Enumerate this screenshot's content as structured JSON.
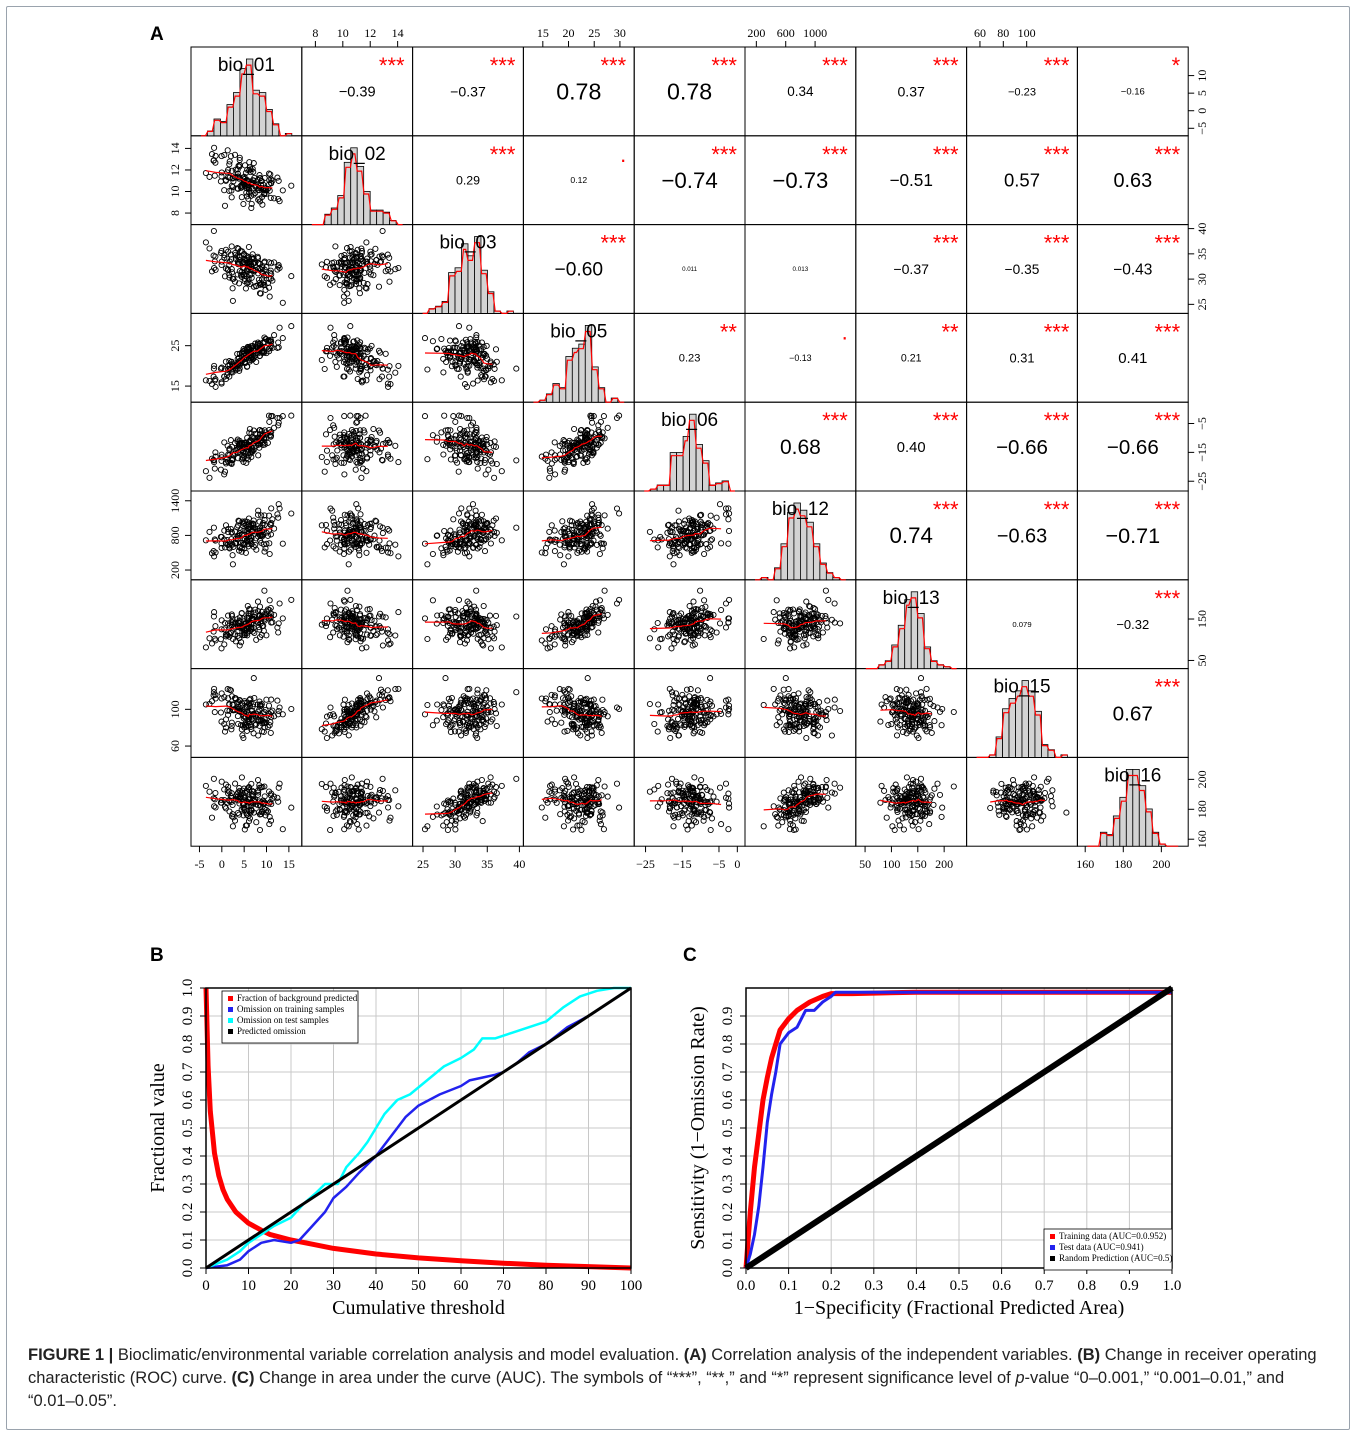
{
  "panel_letters": {
    "a": "A",
    "b": "B",
    "c": "C"
  },
  "caption": {
    "label": "FIGURE 1 |",
    "intro": " Bioclimatic/environmental variable correlation analysis and model evaluation. ",
    "a_tag": "(A)",
    "a_text": " Correlation analysis of the independent variables. ",
    "b_tag": "(B)",
    "b_text": " Change in receiver operating characteristic (ROC) curve. ",
    "c_tag": "(C)",
    "c_text": " Change in area under the curve (AUC). The symbols of “***”, “**,” and “*” represent significance level of ",
    "p_italic": "p",
    "end_text": "-value “0–0.001,” “0.001–0.01,” and “0.01–0.05”."
  },
  "chart_data": [
    {
      "type": "scatter",
      "id": "A",
      "variables": [
        "bio_01",
        "bio_02",
        "bio_03",
        "bio_05",
        "bio_06",
        "bio_12",
        "bio_13",
        "bio_15",
        "bio_16"
      ],
      "ranges": [
        [
          -6,
          17
        ],
        [
          7.3,
          14.8
        ],
        [
          24,
          40
        ],
        [
          12,
          32
        ],
        [
          -27,
          1
        ],
        [
          100,
          1500
        ],
        [
          40,
          235
        ],
        [
          52,
          140
        ],
        [
          158,
          212
        ]
      ],
      "axis_ticks": [
        {
          "values": [
            -5,
            0,
            5,
            10,
            15
          ],
          "labels": [
            "-5",
            "0",
            "5",
            "10",
            "15"
          ],
          "edge": "bottom"
        },
        {
          "values": [
            8,
            10,
            12,
            14
          ],
          "labels": [
            "8",
            "10",
            "12",
            "14"
          ],
          "edge": "top"
        },
        {
          "values": [
            25,
            30,
            35,
            40
          ],
          "labels": [
            "25",
            "30",
            "35",
            "40"
          ],
          "edge": "bottom"
        },
        {
          "values": [
            15,
            20,
            25,
            30
          ],
          "labels": [
            "15",
            "20",
            "25",
            "30"
          ],
          "edge": "top"
        },
        {
          "values": [
            -25,
            -15,
            -5,
            0
          ],
          "labels": [
            "−25",
            "−15",
            "−5",
            "0"
          ],
          "edge": "bottom"
        },
        {
          "values": [
            200,
            600,
            1000
          ],
          "labels": [
            "200",
            "600",
            "1000"
          ],
          "edge": "top"
        },
        {
          "values": [
            50,
            100,
            150,
            200
          ],
          "labels": [
            "50",
            "100",
            "150",
            "200"
          ],
          "edge": "bottom"
        },
        {
          "values": [
            60,
            80,
            100
          ],
          "labels": [
            "60",
            "80",
            "100"
          ],
          "edge": "top"
        },
        {
          "values": [
            160,
            180,
            200
          ],
          "labels": [
            "160",
            "180",
            "200"
          ],
          "edge": "bottom"
        }
      ],
      "y_axis_ticks": [
        {
          "values": [
            -5,
            0,
            5,
            10
          ],
          "labels": [
            "−5",
            "0",
            "5",
            "10"
          ],
          "edge": "right"
        },
        {
          "values": [
            8,
            10,
            12,
            14
          ],
          "labels": [
            "8",
            "10",
            "12",
            "14"
          ],
          "edge": "left"
        },
        {
          "values": [
            25,
            30,
            35,
            40
          ],
          "labels": [
            "25",
            "30",
            "35",
            "40"
          ],
          "edge": "right"
        },
        {
          "values": [
            15,
            25
          ],
          "labels": [
            "15",
            "25"
          ],
          "edge": "left"
        },
        {
          "values": [
            -25,
            -15,
            -5
          ],
          "labels": [
            "−25",
            "−15",
            "−5"
          ],
          "edge": "right"
        },
        {
          "values": [
            200,
            800,
            1400
          ],
          "labels": [
            "200",
            "800",
            "1400"
          ],
          "edge": "left"
        },
        {
          "values": [
            50,
            150
          ],
          "labels": [
            "50",
            "150"
          ],
          "edge": "right"
        },
        {
          "values": [
            60,
            100
          ],
          "labels": [
            "60",
            "100"
          ],
          "edge": "left"
        },
        {
          "values": [
            160,
            180,
            200
          ],
          "labels": [
            "160",
            "180",
            "200"
          ],
          "edge": "right"
        }
      ],
      "correlations": [
        {
          "row": 0,
          "col": 1,
          "r": "−0.39",
          "stars": "***"
        },
        {
          "row": 0,
          "col": 2,
          "r": "−0.37",
          "stars": "***"
        },
        {
          "row": 0,
          "col": 3,
          "r": "0.78",
          "stars": "***"
        },
        {
          "row": 0,
          "col": 4,
          "r": "0.78",
          "stars": "***"
        },
        {
          "row": 0,
          "col": 5,
          "r": "0.34",
          "stars": "***"
        },
        {
          "row": 0,
          "col": 6,
          "r": "0.37",
          "stars": "***"
        },
        {
          "row": 0,
          "col": 7,
          "r": "−0.23",
          "stars": "***"
        },
        {
          "row": 0,
          "col": 8,
          "r": "−0.16",
          "stars": "*"
        },
        {
          "row": 1,
          "col": 2,
          "r": "0.29",
          "stars": "***"
        },
        {
          "row": 1,
          "col": 3,
          "r": "0.12",
          "stars": "."
        },
        {
          "row": 1,
          "col": 4,
          "r": "−0.74",
          "stars": "***"
        },
        {
          "row": 1,
          "col": 5,
          "r": "−0.73",
          "stars": "***"
        },
        {
          "row": 1,
          "col": 6,
          "r": "−0.51",
          "stars": "***"
        },
        {
          "row": 1,
          "col": 7,
          "r": "0.57",
          "stars": "***"
        },
        {
          "row": 1,
          "col": 8,
          "r": "0.63",
          "stars": "***"
        },
        {
          "row": 2,
          "col": 3,
          "r": "−0.60",
          "stars": "***"
        },
        {
          "row": 2,
          "col": 4,
          "r": "0.011",
          "stars": ""
        },
        {
          "row": 2,
          "col": 5,
          "r": "0.013",
          "stars": ""
        },
        {
          "row": 2,
          "col": 6,
          "r": "−0.37",
          "stars": "***"
        },
        {
          "row": 2,
          "col": 7,
          "r": "−0.35",
          "stars": "***"
        },
        {
          "row": 2,
          "col": 8,
          "r": "−0.43",
          "stars": "***"
        },
        {
          "row": 3,
          "col": 4,
          "r": "0.23",
          "stars": "**"
        },
        {
          "row": 3,
          "col": 5,
          "r": "−0.13",
          "stars": "."
        },
        {
          "row": 3,
          "col": 6,
          "r": "0.21",
          "stars": "**"
        },
        {
          "row": 3,
          "col": 7,
          "r": "0.31",
          "stars": "***"
        },
        {
          "row": 3,
          "col": 8,
          "r": "0.41",
          "stars": "***"
        },
        {
          "row": 4,
          "col": 5,
          "r": "0.68",
          "stars": "***"
        },
        {
          "row": 4,
          "col": 6,
          "r": "0.40",
          "stars": "***"
        },
        {
          "row": 4,
          "col": 7,
          "r": "−0.66",
          "stars": "***"
        },
        {
          "row": 4,
          "col": 8,
          "r": "−0.66",
          "stars": "***"
        },
        {
          "row": 5,
          "col": 6,
          "r": "0.74",
          "stars": "***"
        },
        {
          "row": 5,
          "col": 7,
          "r": "−0.63",
          "stars": "***"
        },
        {
          "row": 5,
          "col": 8,
          "r": "−0.71",
          "stars": "***"
        },
        {
          "row": 6,
          "col": 7,
          "r": "0.079",
          "stars": ""
        },
        {
          "row": 6,
          "col": 8,
          "r": "−0.32",
          "stars": "***"
        },
        {
          "row": 7,
          "col": 8,
          "r": "0.67",
          "stars": "***"
        }
      ],
      "colors": {
        "stars": "#ff0000",
        "smooth": "#ff0000",
        "points": "#000000",
        "bars": "#d3d3d3"
      }
    },
    {
      "type": "line",
      "id": "B",
      "xlabel": "Cumulative threshold",
      "ylabel": "Fractional value",
      "xlim": [
        0,
        100
      ],
      "ylim": [
        0,
        1
      ],
      "x_ticks": [
        0,
        10,
        20,
        30,
        40,
        50,
        60,
        70,
        80,
        90,
        100
      ],
      "y_ticks": [
        "0.0",
        "0.1",
        "0.2",
        "0.3",
        "0.4",
        "0.5",
        "0.6",
        "0.7",
        "0.8",
        "0.9",
        "1.0"
      ],
      "grid": true,
      "legend": "top-left",
      "series": [
        {
          "name": "Fraction of background predicted",
          "color": "#ff0000",
          "x": [
            0,
            0.5,
            1,
            2,
            3,
            4,
            5,
            7,
            10,
            13,
            15,
            20,
            25,
            30,
            40,
            50,
            60,
            70,
            80,
            90,
            100
          ],
          "y": [
            1.0,
            0.72,
            0.56,
            0.41,
            0.33,
            0.28,
            0.245,
            0.2,
            0.16,
            0.135,
            0.12,
            0.1,
            0.085,
            0.07,
            0.05,
            0.036,
            0.026,
            0.017,
            0.01,
            0.005,
            0.0
          ]
        },
        {
          "name": "Omission on training samples",
          "color": "#2222ee",
          "x": [
            0,
            5,
            8,
            10,
            13,
            16,
            20,
            22,
            25,
            28,
            30,
            33,
            36,
            40,
            42,
            45,
            47,
            50,
            55,
            60,
            62,
            65,
            68,
            70,
            73,
            76,
            80,
            85,
            90,
            95,
            100
          ],
          "y": [
            0,
            0.01,
            0.03,
            0.06,
            0.09,
            0.1,
            0.09,
            0.1,
            0.15,
            0.2,
            0.25,
            0.29,
            0.34,
            0.4,
            0.44,
            0.5,
            0.54,
            0.58,
            0.62,
            0.65,
            0.67,
            0.68,
            0.69,
            0.7,
            0.73,
            0.77,
            0.8,
            0.86,
            0.9,
            0.95,
            1.0
          ]
        },
        {
          "name": "Omission on test samples",
          "color": "#00ffff",
          "x": [
            0,
            5,
            8,
            10,
            13,
            16,
            20,
            23,
            26,
            28,
            31,
            33,
            36,
            38,
            40,
            42,
            45,
            48,
            52,
            56,
            60,
            63,
            65,
            68,
            72,
            76,
            80,
            84,
            88,
            92,
            96,
            100
          ],
          "y": [
            0,
            0.03,
            0.06,
            0.09,
            0.12,
            0.15,
            0.18,
            0.23,
            0.27,
            0.3,
            0.3,
            0.36,
            0.41,
            0.45,
            0.5,
            0.55,
            0.6,
            0.62,
            0.67,
            0.72,
            0.75,
            0.78,
            0.82,
            0.82,
            0.84,
            0.86,
            0.88,
            0.93,
            0.97,
            0.99,
            1.0,
            1.0
          ]
        },
        {
          "name": "Predicted omission",
          "color": "#000000",
          "x": [
            0,
            100
          ],
          "y": [
            0,
            1
          ]
        }
      ]
    },
    {
      "type": "line",
      "id": "C",
      "xlabel": "1−Specificity (Fractional Predicted Area)",
      "ylabel": "Sensitivity (1−Omission Rate)",
      "xlim": [
        0,
        1
      ],
      "ylim": [
        0,
        1
      ],
      "x_ticks": [
        "0.0",
        "0.1",
        "0.2",
        "0.3",
        "0.4",
        "0.5",
        "0.6",
        "0.7",
        "0.8",
        "0.9",
        "1.0"
      ],
      "y_ticks": [
        "0.0",
        "0.1",
        "0.2",
        "0.3",
        "0.4",
        "0.5",
        "0.6",
        "0.7",
        "0.8",
        "0.9"
      ],
      "grid": true,
      "legend": "bottom-right",
      "series": [
        {
          "name": "Training data (AUC=0.0.952)",
          "color": "#ff0000",
          "x": [
            0,
            0.005,
            0.01,
            0.015,
            0.02,
            0.03,
            0.04,
            0.05,
            0.06,
            0.07,
            0.08,
            0.1,
            0.12,
            0.15,
            0.18,
            0.2,
            0.25,
            0.4,
            0.6,
            0.8,
            1.0
          ],
          "y": [
            0,
            0.1,
            0.2,
            0.28,
            0.36,
            0.48,
            0.6,
            0.68,
            0.75,
            0.8,
            0.85,
            0.89,
            0.92,
            0.95,
            0.97,
            0.98,
            0.98,
            0.985,
            0.985,
            0.985,
            0.985
          ]
        },
        {
          "name": "Test data (AUC=0.941)",
          "color": "#2222ee",
          "x": [
            0,
            0.01,
            0.02,
            0.03,
            0.04,
            0.05,
            0.06,
            0.07,
            0.08,
            0.1,
            0.12,
            0.14,
            0.16,
            0.18,
            0.2,
            0.21,
            0.3,
            0.5,
            0.7,
            1.0
          ],
          "y": [
            0,
            0.05,
            0.12,
            0.22,
            0.36,
            0.52,
            0.62,
            0.7,
            0.8,
            0.84,
            0.86,
            0.92,
            0.92,
            0.95,
            0.97,
            0.985,
            0.985,
            0.985,
            0.985,
            0.985
          ]
        },
        {
          "name": "Random Prediction (AUC=0.5)",
          "color": "#000000",
          "x": [
            0,
            1
          ],
          "y": [
            0,
            1
          ]
        }
      ]
    }
  ]
}
